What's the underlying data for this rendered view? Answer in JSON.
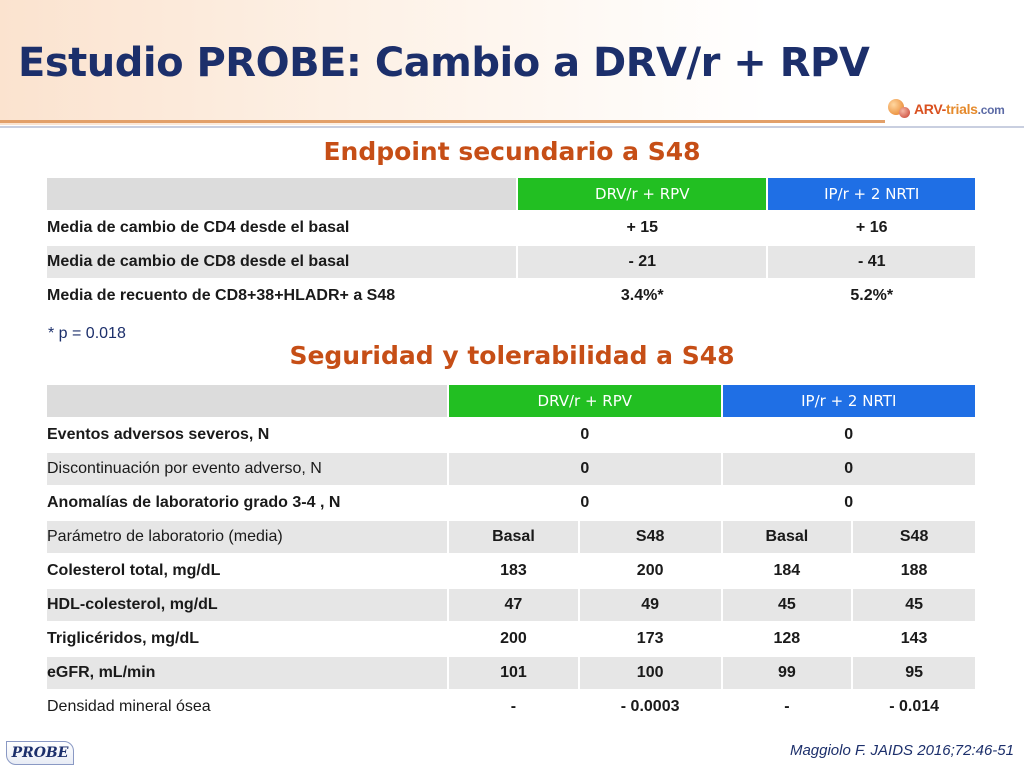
{
  "title": "Estudio PROBE: Cambio a DRV/r + RPV",
  "logo": {
    "brand": "ARV-",
    "domain": "trials",
    "suffix": ".com"
  },
  "section1": {
    "title": "Endpoint secundario a S48",
    "headers": [
      "",
      "DRV/r + RPV",
      "IP/r + 2 NRTI"
    ],
    "rows": [
      {
        "label": "Media de cambio de CD4 desde el basal",
        "drv": "+ 15",
        "ip": "+ 16"
      },
      {
        "label": "Media de cambio de CD8 desde el basal",
        "drv": "- 21",
        "ip": "- 41"
      },
      {
        "label": "Media de recuento de CD8+38+HLADR+ a S48",
        "drv": "3.4%*",
        "ip": "5.2%*"
      }
    ],
    "footnote": "* p = 0.018"
  },
  "section2": {
    "title": "Seguridad y tolerabilidad a S48",
    "headers": [
      "",
      "DRV/r + RPV",
      "IP/r + 2 NRTI"
    ],
    "events": [
      {
        "label": "Eventos adversos severos, N",
        "drv": "0",
        "ip": "0"
      },
      {
        "label": "Discontinuación por evento adverso, N",
        "drv": "0",
        "ip": "0"
      },
      {
        "label": "Anomalías de laboratorio grado 3-4 , N",
        "drv": "0",
        "ip": "0"
      }
    ],
    "lab_header": {
      "label": "Parámetro de laboratorio (media)",
      "drv_basal": "Basal",
      "drv_s48": "S48",
      "ip_basal": "Basal",
      "ip_s48": "S48"
    },
    "lab_rows": [
      {
        "label": "Colesterol total, mg/dL",
        "drv_basal": "183",
        "drv_s48": "200",
        "ip_basal": "184",
        "ip_s48": "188"
      },
      {
        "label": "HDL-colesterol, mg/dL",
        "drv_basal": "47",
        "drv_s48": "49",
        "ip_basal": "45",
        "ip_s48": "45"
      },
      {
        "label": "Triglicéridos, mg/dL",
        "drv_basal": "200",
        "drv_s48": "173",
        "ip_basal": "128",
        "ip_s48": "143"
      },
      {
        "label": "eGFR, mL/min",
        "drv_basal": "101",
        "drv_s48": "100",
        "ip_basal": "99",
        "ip_s48": "95"
      },
      {
        "label": "Densidad mineral ósea",
        "drv_basal": "-",
        "drv_s48": "- 0.0003",
        "ip_basal": "-",
        "ip_s48": "- 0.014"
      }
    ]
  },
  "footer": {
    "tag": "PROBE",
    "citation": "Maggiolo F. JAIDS 2016;72:46-51"
  },
  "colors": {
    "title": "#1c2f6b",
    "section": "#c64e16",
    "drv_head": "#22bf22",
    "ip_head": "#1f6fe5"
  }
}
